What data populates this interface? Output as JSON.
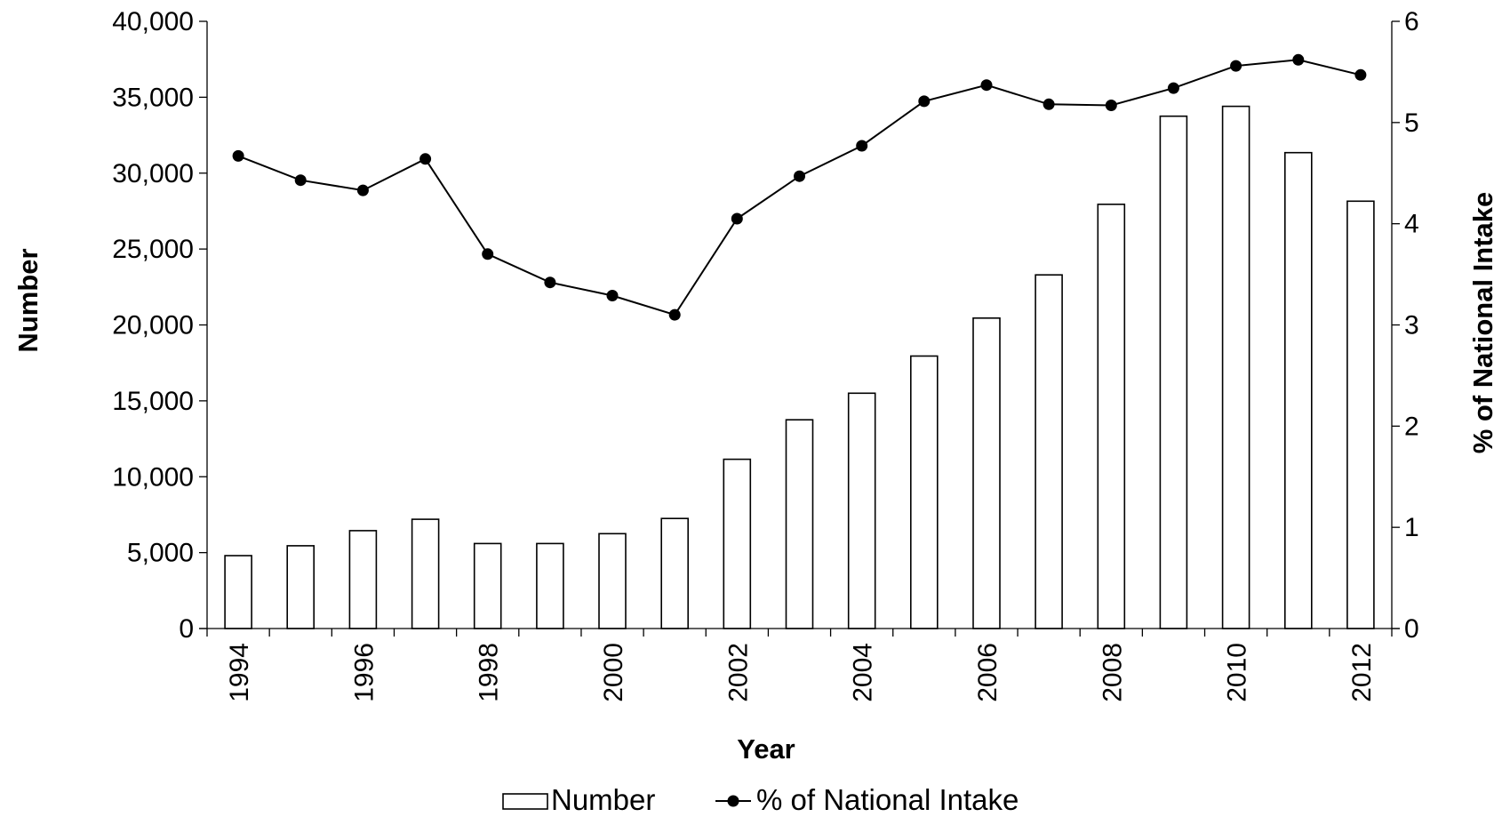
{
  "chart_data": {
    "type": "bar+line",
    "xlabel": "Year",
    "ylabel_left": "Number",
    "ylabel_right": "% of National Intake",
    "x": [
      1994,
      1995,
      1996,
      1997,
      1998,
      1999,
      2000,
      2001,
      2002,
      2003,
      2004,
      2005,
      2006,
      2007,
      2008,
      2009,
      2010,
      2011,
      2012
    ],
    "x_tick_labels": [
      "1994",
      "1996",
      "1998",
      "2000",
      "2002",
      "2004",
      "2006",
      "2008",
      "2010",
      "2012"
    ],
    "y_left_ticks": [
      "0",
      "5,000",
      "10,000",
      "15,000",
      "20,000",
      "25,000",
      "30,000",
      "35,000",
      "40,000"
    ],
    "y_right_ticks": [
      "0",
      "1",
      "2",
      "3",
      "4",
      "5",
      "6"
    ],
    "ylim_left": [
      0,
      40000
    ],
    "ylim_right": [
      0,
      6
    ],
    "grid": false,
    "legend_position": "bottom",
    "series": [
      {
        "name": "Number",
        "type": "bar",
        "axis": "left",
        "values": [
          4800,
          5450,
          6450,
          7200,
          5600,
          5600,
          6250,
          7250,
          11150,
          13750,
          15500,
          17950,
          20450,
          23300,
          27950,
          33750,
          34400,
          31350,
          28150
        ]
      },
      {
        "name": "% of National Intake",
        "type": "line",
        "axis": "right",
        "values": [
          4.67,
          4.43,
          4.33,
          4.64,
          3.7,
          3.42,
          3.29,
          3.1,
          4.05,
          4.47,
          4.77,
          5.21,
          5.37,
          5.18,
          5.17,
          5.34,
          5.56,
          5.62,
          5.47
        ]
      }
    ]
  }
}
